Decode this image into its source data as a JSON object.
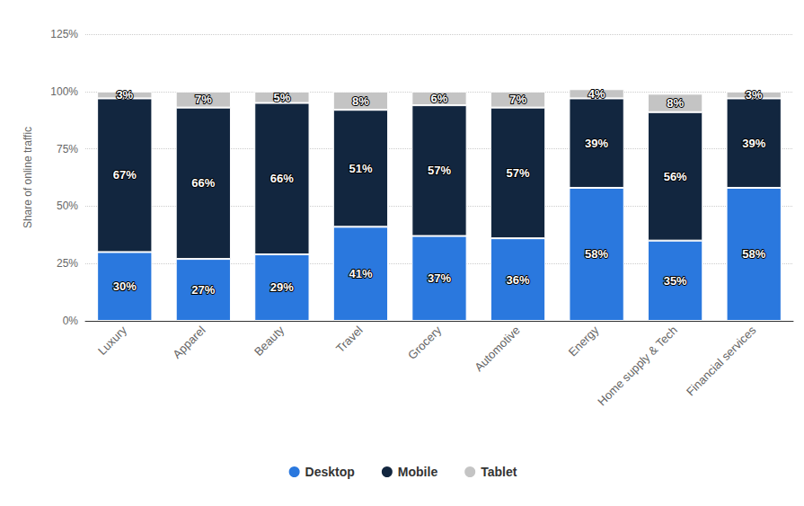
{
  "chart_data": {
    "type": "bar",
    "stacked": true,
    "data_labels": true,
    "grid": true,
    "legend": "bottom",
    "y_label": "Share of online traffic",
    "categories": [
      "Luxury",
      "Apparel",
      "Beauty",
      "Travel",
      "Grocery",
      "Automotive",
      "Energy",
      "Home supply & Tech",
      "Financial services"
    ],
    "series": [
      {
        "name": "Desktop",
        "color": "#2a78de",
        "values": [
          30,
          27,
          29,
          41,
          37,
          36,
          58,
          35,
          58
        ],
        "value_labels": [
          "30%",
          "27%",
          "29%",
          "41%",
          "37%",
          "36%",
          "58%",
          "35%",
          "58%"
        ]
      },
      {
        "name": "Mobile",
        "color": "#12263f",
        "values": [
          67,
          66,
          66,
          51,
          57,
          57,
          39,
          56,
          39
        ],
        "value_labels": [
          "67%",
          "66%",
          "66%",
          "51%",
          "57%",
          "57%",
          "39%",
          "56%",
          "39%"
        ]
      },
      {
        "name": "Tablet",
        "color": "#c4c4c4",
        "values": [
          3,
          7,
          5,
          8,
          6,
          7,
          4,
          8,
          3
        ],
        "value_labels": [
          "3%",
          "7%",
          "5%",
          "8%",
          "6%",
          "7%",
          "4%",
          "8%",
          "3%"
        ]
      }
    ],
    "ylim": [
      0,
      125
    ],
    "yticks": [
      {
        "value": 0,
        "label": "0%"
      },
      {
        "value": 25,
        "label": "25%"
      },
      {
        "value": 50,
        "label": "50%"
      },
      {
        "value": 75,
        "label": "75%"
      },
      {
        "value": 100,
        "label": "100%"
      },
      {
        "value": 125,
        "label": "125%"
      }
    ]
  }
}
